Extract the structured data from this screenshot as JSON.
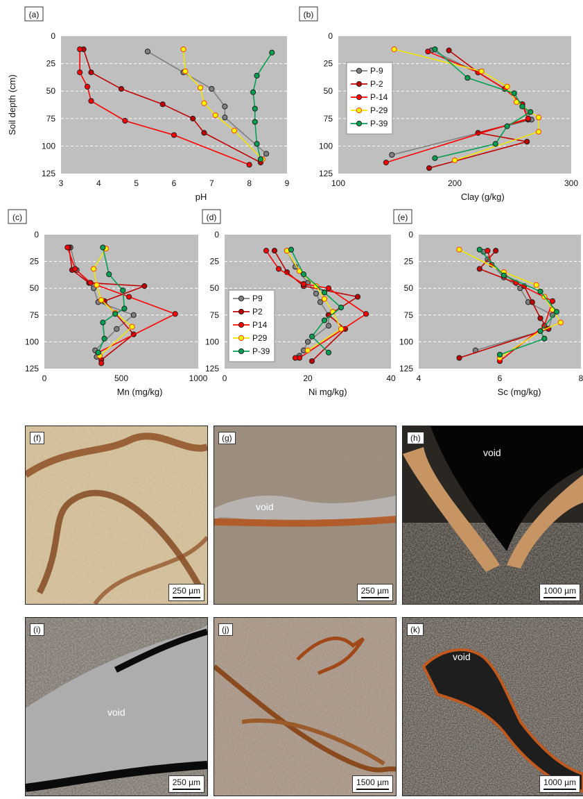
{
  "chart_data": [
    {
      "id": "a",
      "type": "line",
      "panel_label": "(a)",
      "xlabel": "pH",
      "ylabel": "Soil depth (cm)",
      "xlim": [
        3,
        9
      ],
      "ylim": [
        125,
        0
      ],
      "xticks": [
        "3",
        "4",
        "5",
        "6",
        "7",
        "8",
        "9"
      ],
      "yticks": [
        "0",
        "25",
        "50",
        "75",
        "100",
        "125"
      ],
      "series": [
        {
          "key": "p9",
          "color": "#808080",
          "points": [
            [
              5.3,
              14
            ],
            [
              6.25,
              33
            ],
            [
              7.0,
              48
            ],
            [
              7.35,
              64
            ],
            [
              7.35,
              74
            ],
            [
              8.45,
              107
            ],
            [
              8.3,
              113
            ]
          ]
        },
        {
          "key": "p2",
          "color": "#c00000",
          "points": [
            [
              3.6,
              12
            ],
            [
              3.8,
              33
            ],
            [
              4.6,
              48
            ],
            [
              5.7,
              62
            ],
            [
              6.5,
              75
            ],
            [
              6.8,
              88
            ],
            [
              8.3,
              115
            ]
          ]
        },
        {
          "key": "p14",
          "color": "#ff0000",
          "points": [
            [
              3.5,
              12
            ],
            [
              3.5,
              33
            ],
            [
              3.7,
              46
            ],
            [
              3.8,
              59
            ],
            [
              4.7,
              77
            ],
            [
              6.0,
              90
            ],
            [
              8.0,
              117
            ]
          ]
        },
        {
          "key": "p29",
          "color": "#ffff00",
          "points": [
            [
              6.25,
              12
            ],
            [
              6.3,
              32
            ],
            [
              6.7,
              47
            ],
            [
              6.8,
              61
            ],
            [
              7.1,
              72
            ],
            [
              7.6,
              86
            ],
            [
              8.35,
              112
            ]
          ]
        },
        {
          "key": "p39",
          "color": "#00a050",
          "points": [
            [
              8.6,
              15
            ],
            [
              8.2,
              36
            ],
            [
              8.1,
              51
            ],
            [
              8.15,
              66
            ],
            [
              8.15,
              78
            ],
            [
              8.2,
              98
            ],
            [
              8.3,
              112
            ]
          ]
        }
      ]
    },
    {
      "id": "b",
      "type": "line",
      "panel_label": "(b)",
      "xlabel": "Clay (g/kg)",
      "ylabel": "",
      "xlim": [
        100,
        300
      ],
      "ylim": [
        125,
        0
      ],
      "xticks": [
        "100",
        "200",
        "300"
      ],
      "yticks": [
        "0",
        "25",
        "50",
        "75",
        "100",
        "125"
      ],
      "legend": {
        "position": "left",
        "entries": [
          "P-9",
          "P-2",
          "P-14",
          "P-29",
          "P-39"
        ]
      },
      "series": [
        {
          "key": "p9",
          "color": "#808080",
          "points": [
            [
              180,
              13
            ],
            [
              220,
              33
            ],
            [
              243,
              48
            ],
            [
              258,
              62
            ],
            [
              266,
              76
            ],
            [
              146,
              108
            ]
          ]
        },
        {
          "key": "p2",
          "color": "#c00000",
          "points": [
            [
              195,
              13
            ],
            [
              220,
              33
            ],
            [
              243,
              48
            ],
            [
              258,
              62
            ],
            [
              263,
              76
            ],
            [
              220,
              88
            ],
            [
              262,
              96
            ],
            [
              178,
              120
            ]
          ]
        },
        {
          "key": "p14",
          "color": "#ff0000",
          "points": [
            [
              177,
              14
            ],
            [
              220,
              33
            ],
            [
              243,
              48
            ],
            [
              258,
              62
            ],
            [
              263,
              75
            ],
            [
              141,
              115
            ]
          ]
        },
        {
          "key": "p29",
          "color": "#ffff00",
          "points": [
            [
              148,
              12
            ],
            [
              223,
              32
            ],
            [
              245,
              46
            ],
            [
              253,
              60
            ],
            [
              272,
              74
            ],
            [
              272,
              87
            ],
            [
              200,
              113
            ]
          ]
        },
        {
          "key": "p39",
          "color": "#00a050",
          "points": [
            [
              183,
              12
            ],
            [
              211,
              38
            ],
            [
              251,
              52
            ],
            [
              258,
              64
            ],
            [
              265,
              69
            ],
            [
              245,
              82
            ],
            [
              235,
              98
            ],
            [
              183,
              111
            ]
          ]
        }
      ]
    },
    {
      "id": "c",
      "type": "line",
      "panel_label": "(c)",
      "xlabel": "Mn (mg/kg)",
      "ylabel": "",
      "xlim": [
        0,
        1000
      ],
      "ylim": [
        125,
        0
      ],
      "xticks": [
        "0",
        "500",
        "1000"
      ],
      "yticks": [
        "0",
        "25",
        "50",
        "75",
        "100",
        "125"
      ],
      "series": [
        {
          "key": "p9",
          "color": "#808080",
          "points": [
            [
              170,
              12
            ],
            [
              210,
              33
            ],
            [
              320,
              50
            ],
            [
              350,
              63
            ],
            [
              580,
              75
            ],
            [
              470,
              88
            ],
            [
              330,
              108
            ],
            [
              340,
              114
            ]
          ]
        },
        {
          "key": "p2",
          "color": "#c00000",
          "points": [
            [
              160,
              12
            ],
            [
              180,
              33
            ],
            [
              290,
              45
            ],
            [
              650,
              48
            ],
            [
              390,
              62
            ],
            [
              580,
              93
            ],
            [
              370,
              117
            ]
          ]
        },
        {
          "key": "p14",
          "color": "#ff0000",
          "points": [
            [
              150,
              12
            ],
            [
              200,
              32
            ],
            [
              300,
              45
            ],
            [
              550,
              58
            ],
            [
              850,
              74
            ],
            [
              350,
              110
            ],
            [
              370,
              120
            ]
          ]
        },
        {
          "key": "p29",
          "color": "#ffff00",
          "points": [
            [
              400,
              13
            ],
            [
              320,
              32
            ],
            [
              340,
              47
            ],
            [
              370,
              61
            ],
            [
              460,
              73
            ],
            [
              570,
              86
            ],
            [
              360,
              113
            ]
          ]
        },
        {
          "key": "p39",
          "color": "#00a050",
          "points": [
            [
              380,
              12
            ],
            [
              420,
              37
            ],
            [
              510,
              52
            ],
            [
              520,
              69
            ],
            [
              460,
              74
            ],
            [
              380,
              82
            ],
            [
              390,
              97
            ],
            [
              350,
              110
            ]
          ]
        }
      ]
    },
    {
      "id": "d",
      "type": "line",
      "panel_label": "(d)",
      "xlabel": "Ni mg/kg)",
      "ylabel": "",
      "xlim": [
        0,
        40
      ],
      "ylim": [
        125,
        0
      ],
      "xticks": [
        "0",
        "20",
        "40"
      ],
      "yticks": [
        "0",
        "25",
        "50",
        "75",
        "100",
        "125"
      ],
      "legend": {
        "position": "left",
        "entries": [
          "P9",
          "P2",
          "P14",
          "P29",
          "P-39"
        ]
      },
      "series": [
        {
          "key": "p9",
          "color": "#808080",
          "points": [
            [
              15,
              15
            ],
            [
              17,
              30
            ],
            [
              20,
              45
            ],
            [
              22,
              55
            ],
            [
              23,
              63
            ],
            [
              25,
              75
            ],
            [
              25,
              85
            ],
            [
              20,
              100
            ],
            [
              19,
              108
            ],
            [
              18,
              113
            ]
          ]
        },
        {
          "key": "p2",
          "color": "#c00000",
          "points": [
            [
              12,
              15
            ],
            [
              15,
              35
            ],
            [
              19,
              48
            ],
            [
              32,
              58
            ],
            [
              25,
              75
            ],
            [
              29,
              88
            ],
            [
              21,
              118
            ]
          ]
        },
        {
          "key": "p14",
          "color": "#ff0000",
          "points": [
            [
              10,
              15
            ],
            [
              13,
              32
            ],
            [
              19,
              46
            ],
            [
              25,
              50
            ],
            [
              34,
              74
            ],
            [
              18,
              115
            ],
            [
              17,
              115
            ]
          ]
        },
        {
          "key": "p29",
          "color": "#ffff00",
          "points": [
            [
              15,
              15
            ],
            [
              18,
              34
            ],
            [
              22,
              48
            ],
            [
              24,
              60
            ],
            [
              26,
              72
            ],
            [
              28,
              88
            ],
            [
              20,
              108
            ]
          ]
        },
        {
          "key": "p39",
          "color": "#00a050",
          "points": [
            [
              16,
              14
            ],
            [
              19,
              37
            ],
            [
              24,
              54
            ],
            [
              28,
              68
            ],
            [
              24,
              80
            ],
            [
              21,
              95
            ],
            [
              25,
              110
            ]
          ]
        }
      ]
    },
    {
      "id": "e",
      "type": "line",
      "panel_label": "(e)",
      "xlabel": "Sc (mg/kg)",
      "ylabel": "",
      "xlim": [
        4,
        8
      ],
      "ylim": [
        125,
        0
      ],
      "xticks": [
        "4",
        "6",
        "8"
      ],
      "yticks": [
        "0",
        "25",
        "50",
        "75",
        "100",
        "125"
      ],
      "series": [
        {
          "key": "p9",
          "color": "#808080",
          "points": [
            [
              5.6,
              16
            ],
            [
              5.7,
              23
            ],
            [
              6.1,
              40
            ],
            [
              6.5,
              50
            ],
            [
              6.7,
              63
            ],
            [
              7.3,
              75
            ],
            [
              7.2,
              88
            ],
            [
              5.4,
              108
            ]
          ]
        },
        {
          "key": "p2",
          "color": "#c00000",
          "points": [
            [
              5.9,
              15
            ],
            [
              5.5,
              32
            ],
            [
              6.6,
              48
            ],
            [
              6.8,
              63
            ],
            [
              7.0,
              78
            ],
            [
              7.2,
              88
            ],
            [
              5.0,
              115
            ]
          ]
        },
        {
          "key": "p14",
          "color": "#ff0000",
          "points": [
            [
              5.7,
              15
            ],
            [
              5.8,
              28
            ],
            [
              6.4,
              45
            ],
            [
              7.3,
              62
            ],
            [
              7.1,
              85
            ],
            [
              6.0,
              118
            ]
          ]
        },
        {
          "key": "p29",
          "color": "#ffff00",
          "points": [
            [
              5.0,
              14
            ],
            [
              6.1,
              35
            ],
            [
              6.9,
              47
            ],
            [
              7.1,
              58
            ],
            [
              7.3,
              70
            ],
            [
              7.5,
              82
            ],
            [
              7.0,
              90
            ],
            [
              6.0,
              115
            ]
          ]
        },
        {
          "key": "p39",
          "color": "#00a050",
          "points": [
            [
              5.5,
              14
            ],
            [
              6.1,
              38
            ],
            [
              7.0,
              53
            ],
            [
              7.4,
              72
            ],
            [
              7.0,
              90
            ],
            [
              7.1,
              97
            ],
            [
              6.0,
              112
            ]
          ]
        }
      ]
    }
  ],
  "micrographs": [
    {
      "id": "f",
      "label": "(f)",
      "scale": "250 µm",
      "void": ""
    },
    {
      "id": "g",
      "label": "(g)",
      "scale": "250 µm",
      "void": "void"
    },
    {
      "id": "h",
      "label": "(h)",
      "scale": "1000 µm",
      "void": "void"
    },
    {
      "id": "i",
      "label": "(i)",
      "scale": "250 µm",
      "void": "void"
    },
    {
      "id": "j",
      "label": "(j)",
      "scale": "1500 µm",
      "void": ""
    },
    {
      "id": "k",
      "label": "(k)",
      "scale": "1000 µm",
      "void": "void"
    }
  ]
}
